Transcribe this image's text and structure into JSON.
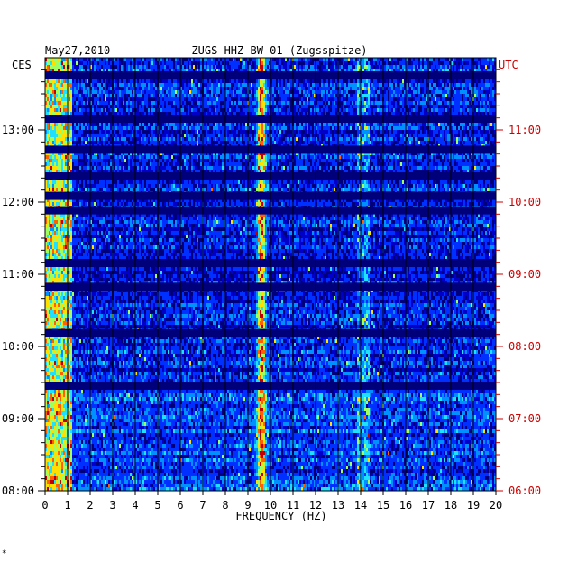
{
  "chart_data": {
    "type": "heatmap",
    "title_left": "May27,2010",
    "title": "ZUGS HHZ BW 01 (Zugsspitze)",
    "left_axis_label": "CES",
    "right_axis_label": "UTC",
    "xlabel": "FREQUENCY (HZ)",
    "xlim": [
      0,
      20
    ],
    "x_ticks": [
      "0",
      "1",
      "2",
      "3",
      "4",
      "5",
      "6",
      "7",
      "8",
      "9",
      "10",
      "11",
      "12",
      "13",
      "14",
      "15",
      "16",
      "17",
      "18",
      "19",
      "20"
    ],
    "left_time_ticks": [
      {
        "label": "13:00",
        "hour": 13
      },
      {
        "label": "12:00",
        "hour": 12
      },
      {
        "label": "11:00",
        "hour": 11
      },
      {
        "label": "10:00",
        "hour": 10
      },
      {
        "label": "09:00",
        "hour": 9
      },
      {
        "label": "08:00",
        "hour": 8
      }
    ],
    "right_time_ticks": [
      {
        "label": "11:00",
        "hour": 11
      },
      {
        "label": "10:00",
        "hour": 10
      },
      {
        "label": "09:00",
        "hour": 9
      },
      {
        "label": "08:00",
        "hour": 8
      },
      {
        "label": "07:00",
        "hour": 7
      },
      {
        "label": "06:00",
        "hour": 6
      }
    ],
    "time_range_local_hours": [
      8,
      13.95
    ],
    "minor_ticks_per_hour": 6,
    "colormap": [
      "#00007a",
      "#0000c8",
      "#0030ff",
      "#0090ff",
      "#20e0ff",
      "#a0ff60",
      "#ffe000",
      "#ff6000",
      "#c00000"
    ],
    "features": {
      "strong_line_hz": 9.6,
      "secondary_band_hz": [
        13.8,
        14.4
      ],
      "low_freq_energy_hz": [
        0,
        1.2
      ],
      "dark_gaps_local_hour": [
        13.75,
        13.15,
        12.72,
        12.35,
        12.08,
        11.88,
        11.15,
        10.82,
        10.18,
        9.45
      ]
    },
    "colors": {
      "left_axis": "#000000",
      "right_axis": "#cc0000",
      "grid": "#000000",
      "background": "#ffffff"
    }
  },
  "footer": {
    "mark": "*"
  }
}
